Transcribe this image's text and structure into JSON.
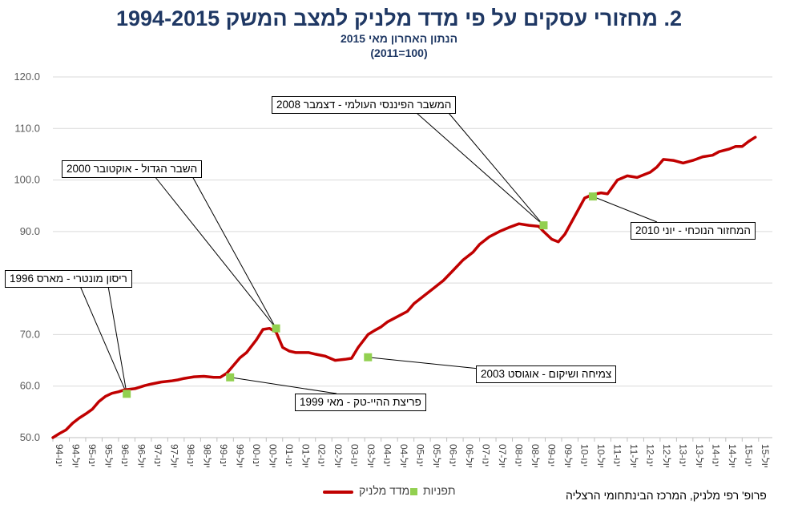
{
  "title": "2. מחזורי עסקים על פי מדד מלניק למצב המשק 1994-2015",
  "subtitle": "הנתון האחרון מאי 2015",
  "base_note": "(100=2011)",
  "credit": "פרופ' רפי מלניק, המרכז הבינתחומי הרצליה",
  "colors": {
    "series": "#c00000",
    "marker": "#92d050",
    "grid": "#d9d9d9",
    "title": "#1f3864"
  },
  "chart_data": {
    "type": "line",
    "ylim": [
      50,
      120
    ],
    "yticks": [
      "50.0",
      "60.0",
      "70.0",
      "90.0",
      "100.0",
      "110.0",
      "120.0"
    ],
    "ytick_values": [
      50,
      60,
      70,
      90,
      100,
      110,
      120
    ],
    "hidden_ytick_value": 80,
    "xlim": [
      1994.0,
      2015.92
    ],
    "xtick_labels": [
      "ינו-94",
      "יול-94",
      "ינו-95",
      "יול-95",
      "ינו-96",
      "יול-96",
      "ינו-97",
      "יול-97",
      "ינו-98",
      "יול-98",
      "ינו-99",
      "יול-99",
      "ינו-00",
      "יול-00",
      "ינו-01",
      "יול-01",
      "ינו-02",
      "יול-02",
      "ינו-03",
      "יול-03",
      "ינו-04",
      "יול-04",
      "ינו-05",
      "יול-05",
      "ינו-06",
      "יול-06",
      "ינו-07",
      "יול-07",
      "ינו-08",
      "יול-08",
      "ינו-09",
      "יול-09",
      "ינו-10",
      "יול-10",
      "ינו-11",
      "יול-11",
      "ינו-12",
      "יול-12",
      "ינו-13",
      "יול-13",
      "ינו-14",
      "יול-14",
      "ינו-15",
      "יול-15"
    ],
    "series": [
      {
        "name": "מדד מלניק",
        "x": [
          1994.0,
          1994.2,
          1994.4,
          1994.6,
          1994.8,
          1995.0,
          1995.2,
          1995.4,
          1995.6,
          1995.8,
          1996.0,
          1996.2,
          1996.5,
          1996.8,
          1997.0,
          1997.3,
          1997.6,
          1997.8,
          1998.0,
          1998.3,
          1998.6,
          1998.9,
          1999.1,
          1999.3,
          1999.5,
          1999.7,
          1999.9,
          2000.2,
          2000.4,
          2000.6,
          2000.8,
          2001.0,
          2001.2,
          2001.4,
          2001.6,
          2001.8,
          2002.0,
          2002.3,
          2002.6,
          2002.9,
          2003.1,
          2003.3,
          2003.6,
          2003.8,
          2004.0,
          2004.2,
          2004.5,
          2004.8,
          2005.0,
          2005.3,
          2005.6,
          2005.9,
          2006.2,
          2006.5,
          2006.8,
          2007.0,
          2007.3,
          2007.6,
          2007.9,
          2008.2,
          2008.5,
          2008.8,
          2008.95,
          2009.2,
          2009.4,
          2009.6,
          2009.9,
          2010.2,
          2010.45,
          2010.7,
          2010.9,
          2011.2,
          2011.5,
          2011.8,
          2012.0,
          2012.2,
          2012.4,
          2012.6,
          2012.9,
          2013.2,
          2013.5,
          2013.8,
          2014.1,
          2014.3,
          2014.6,
          2014.8,
          2015.0,
          2015.2,
          2015.4
        ],
        "values": [
          50.0,
          50.8,
          51.5,
          52.8,
          53.8,
          54.6,
          55.5,
          57.0,
          58.0,
          58.6,
          58.9,
          59.3,
          59.5,
          60.1,
          60.4,
          60.8,
          61.0,
          61.2,
          61.5,
          61.8,
          61.9,
          61.7,
          61.7,
          62.5,
          64.0,
          65.5,
          66.5,
          69.0,
          71.0,
          71.2,
          70.5,
          67.5,
          66.8,
          66.5,
          66.5,
          66.5,
          66.2,
          65.8,
          65.0,
          65.2,
          65.4,
          67.5,
          70.0,
          70.8,
          71.5,
          72.5,
          73.5,
          74.5,
          76.0,
          77.5,
          79.0,
          80.5,
          82.5,
          84.5,
          86.0,
          87.5,
          89.0,
          90.0,
          90.8,
          91.5,
          91.2,
          91.0,
          90.0,
          88.5,
          88.0,
          89.5,
          93.0,
          96.5,
          97.2,
          97.5,
          97.3,
          100.0,
          100.8,
          100.5,
          101.0,
          101.5,
          102.5,
          104.0,
          103.8,
          103.3,
          103.8,
          104.5,
          104.8,
          105.5,
          106.0,
          106.5,
          106.5,
          107.5,
          108.3
        ]
      }
    ],
    "markers_name": "תפניות",
    "turning_points": [
      {
        "x": 1996.25,
        "y": 58.5,
        "label": "ריסון מונטרי - מארס 1996"
      },
      {
        "x": 1999.4,
        "y": 61.7,
        "label": "פריצת ההיי-טק - מאי 1999"
      },
      {
        "x": 2000.8,
        "y": 71.2,
        "label": "השבר הגדול - אוקטובר 2000"
      },
      {
        "x": 2003.6,
        "y": 65.6,
        "label": "צמיחה ושיקום - אוגוסט 2003"
      },
      {
        "x": 2008.95,
        "y": 91.2,
        "label": "המשבר הפיננסי העולמי - דצמבר 2008"
      },
      {
        "x": 2010.45,
        "y": 96.8,
        "label": "המחזור הנוכחי - יוני 2010"
      }
    ]
  }
}
